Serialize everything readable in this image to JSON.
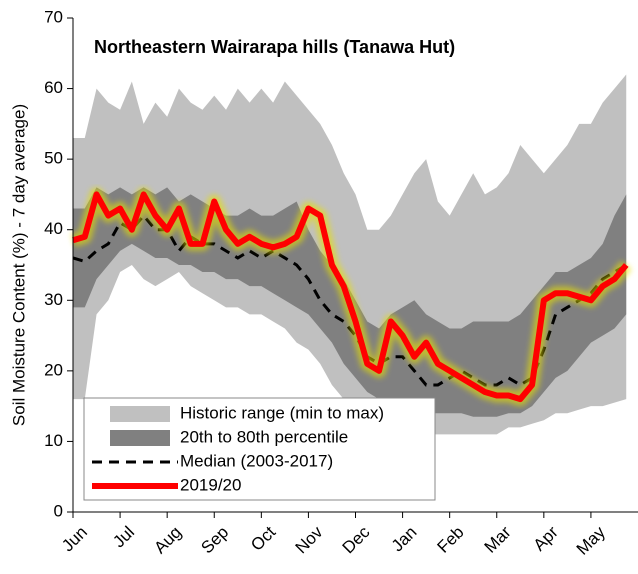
{
  "chart_data": {
    "type": "line",
    "title": "Northeastern Wairarapa hills (Tanawa Hut)",
    "y_label": "Soil Moisture Content (%) - 7 day average)",
    "categories": [
      "Jun",
      null,
      null,
      null,
      "Jul",
      null,
      null,
      null,
      "Aug",
      null,
      null,
      null,
      "Sep",
      null,
      null,
      null,
      "Oct",
      null,
      null,
      null,
      "Nov",
      null,
      null,
      null,
      "Dec",
      null,
      null,
      null,
      "Jan",
      null,
      null,
      null,
      "Feb",
      null,
      null,
      null,
      "Mar",
      null,
      null,
      null,
      "Apr",
      null,
      null,
      null,
      "May",
      null,
      null,
      null
    ],
    "ylim": [
      0,
      70
    ],
    "yticks": [
      0,
      10,
      20,
      30,
      40,
      50,
      60,
      70
    ],
    "series": [
      {
        "name": "Historic range (min to max)",
        "kind": "band",
        "color": "#c0c0c0",
        "values": [
          53,
          53,
          60,
          58,
          57,
          61,
          55,
          58,
          56,
          60,
          58,
          57,
          59,
          57,
          60,
          58,
          60,
          58,
          61,
          59,
          57,
          55,
          52,
          48,
          45,
          40,
          40,
          42,
          45,
          48,
          50,
          44,
          42,
          45,
          48,
          45,
          46,
          48,
          52,
          50,
          48,
          50,
          52,
          55,
          55,
          58,
          60,
          62
        ],
        "lower": [
          16,
          16,
          28,
          30,
          34,
          35,
          33,
          32,
          33,
          34,
          32,
          31,
          30,
          29,
          29,
          28,
          28,
          27,
          26,
          24,
          23,
          21,
          18,
          16,
          15,
          14,
          13,
          12.5,
          12,
          11.5,
          11,
          11,
          11,
          11,
          11,
          11,
          11,
          12,
          12,
          12.5,
          13,
          14,
          14,
          14.5,
          15,
          15,
          15.5,
          16
        ]
      },
      {
        "name": "20th to 80th percentile",
        "kind": "band",
        "color": "#808080",
        "values": [
          43,
          43,
          46,
          45,
          46,
          45,
          46,
          45,
          46,
          44,
          45,
          44,
          43,
          42,
          42,
          43,
          42,
          42,
          43,
          44,
          40,
          37,
          35,
          33,
          30,
          27,
          26,
          28,
          29,
          30,
          28,
          27,
          26,
          26,
          27,
          27,
          27,
          27,
          28,
          30,
          32,
          34,
          34,
          35,
          36,
          38,
          42,
          45
        ],
        "lower": [
          29,
          29,
          33,
          35,
          37,
          38,
          37,
          36,
          36,
          35,
          35,
          34,
          34,
          33,
          33,
          32,
          32,
          31,
          30,
          29,
          28,
          26,
          24,
          21,
          19,
          17,
          16,
          15,
          15,
          14.5,
          14,
          14,
          14,
          14,
          13.5,
          13.5,
          13.5,
          14,
          14,
          15,
          17,
          19,
          20,
          22,
          24,
          25,
          26,
          28
        ]
      },
      {
        "name": "Median (2003-2017)",
        "kind": "dash",
        "color": "#000000",
        "values": [
          36,
          35.5,
          37,
          38,
          41,
          40,
          42,
          40,
          40,
          37,
          39,
          38,
          38,
          37,
          36,
          37,
          36,
          37,
          36,
          35,
          33,
          30,
          28,
          27,
          25,
          22,
          21,
          22,
          22,
          20,
          18,
          18,
          19,
          20,
          19,
          18,
          18,
          19,
          18,
          19,
          23,
          28,
          29,
          30,
          31,
          33,
          34,
          35
        ]
      },
      {
        "name": "2019/20",
        "kind": "glow",
        "color": "#ff0000",
        "values": [
          38.5,
          39,
          45,
          42,
          43,
          40,
          45,
          42,
          40,
          43,
          38,
          38,
          44,
          40,
          38,
          39,
          38,
          37.5,
          38,
          39,
          43,
          42,
          35,
          32,
          27,
          21,
          20,
          27,
          25,
          22,
          24,
          21,
          20,
          19,
          18,
          17,
          16.5,
          16.5,
          16,
          18,
          30,
          31,
          31,
          30.5,
          30,
          32,
          33,
          35
        ]
      }
    ]
  }
}
